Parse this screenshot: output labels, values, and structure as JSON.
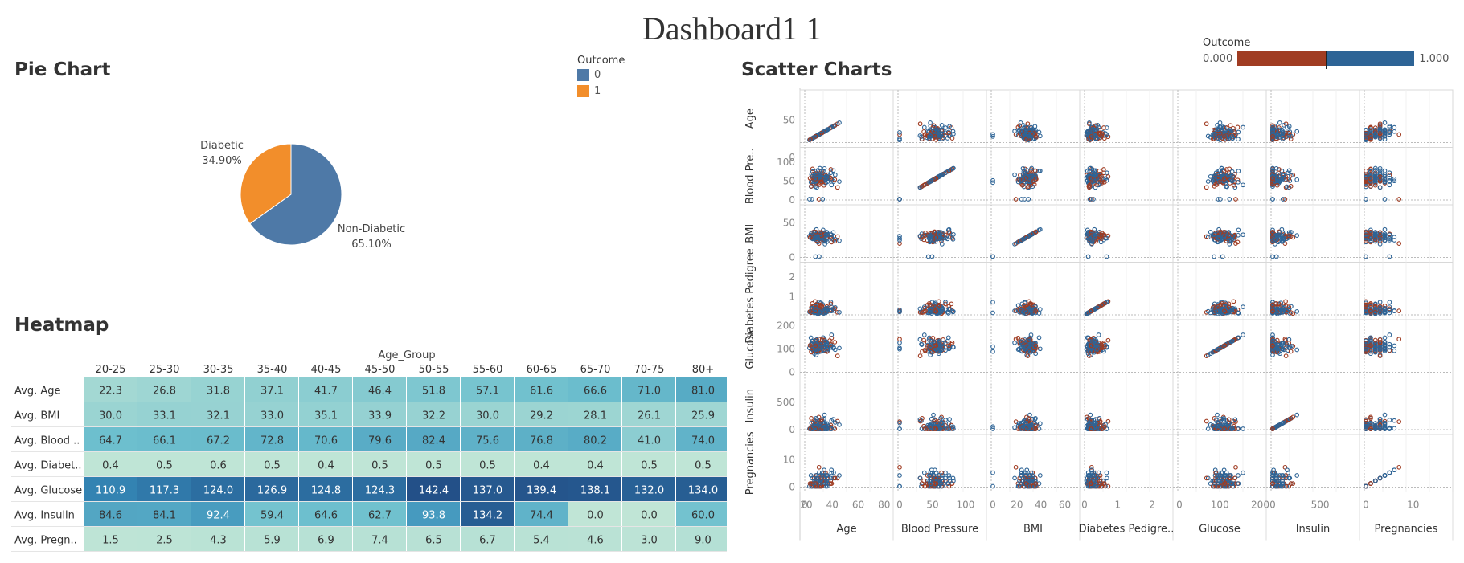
{
  "dashboard": {
    "title": "Dashboard1 1"
  },
  "pie": {
    "title": "Pie Chart",
    "legend": {
      "title": "Outcome",
      "items": [
        {
          "label": "0",
          "color": "#4e79a7"
        },
        {
          "label": "1",
          "color": "#f28e2b"
        }
      ]
    }
  },
  "heatmap_title": "Heatmap",
  "scatter": {
    "title": "Scatter Charts",
    "legend": {
      "title": "Outcome",
      "min_label": "0.000",
      "max_label": "1.000",
      "low_color": "#a03c22",
      "high_color": "#2e6496"
    }
  },
  "chart_data": [
    {
      "type": "pie",
      "slices": [
        {
          "label": "Non-Diabetic",
          "value": 65.1,
          "value_label": "65.10%",
          "color": "#4e79a7"
        },
        {
          "label": "Diabetic",
          "value": 34.9,
          "value_label": "34.90%",
          "color": "#f28e2b"
        }
      ]
    },
    {
      "type": "heatmap",
      "xlabel": "Age_Group",
      "columns": [
        "20-25",
        "25-30",
        "30-35",
        "35-40",
        "40-45",
        "45-50",
        "50-55",
        "55-60",
        "60-65",
        "65-70",
        "70-75",
        "80+"
      ],
      "rows": [
        "Avg. Age",
        "Avg. BMI",
        "Avg. Blood ..",
        "Avg. Diabet..",
        "Avg. Glucose",
        "Avg. Insulin",
        "Avg. Pregn.."
      ],
      "values": [
        [
          "22.3",
          "26.8",
          "31.8",
          "37.1",
          "41.7",
          "46.4",
          "51.8",
          "57.1",
          "61.6",
          "66.6",
          "71.0",
          "81.0"
        ],
        [
          "30.0",
          "33.1",
          "32.1",
          "33.0",
          "35.1",
          "33.9",
          "32.2",
          "30.0",
          "29.2",
          "28.1",
          "26.1",
          "25.9"
        ],
        [
          "64.7",
          "66.1",
          "67.2",
          "72.8",
          "70.6",
          "79.6",
          "82.4",
          "75.6",
          "76.8",
          "80.2",
          "41.0",
          "74.0"
        ],
        [
          "0.4",
          "0.5",
          "0.6",
          "0.5",
          "0.4",
          "0.5",
          "0.5",
          "0.5",
          "0.4",
          "0.4",
          "0.5",
          "0.5"
        ],
        [
          "110.9",
          "117.3",
          "124.0",
          "126.9",
          "124.8",
          "124.3",
          "142.4",
          "137.0",
          "139.4",
          "138.1",
          "132.0",
          "134.0"
        ],
        [
          "84.6",
          "84.1",
          "92.4",
          "59.4",
          "64.6",
          "62.7",
          "93.8",
          "134.2",
          "74.4",
          "0.0",
          "0.0",
          "60.0"
        ],
        [
          "1.5",
          "2.5",
          "4.3",
          "5.9",
          "6.9",
          "7.4",
          "6.5",
          "6.7",
          "5.4",
          "4.6",
          "3.0",
          "9.0"
        ]
      ]
    },
    {
      "type": "scatter",
      "variables": [
        "Age",
        "Blood Pressure",
        "BMI",
        "Diabetes Pedigree Function",
        "Glucose",
        "Insulin",
        "Pregnancies"
      ],
      "row_labels": [
        "Age",
        "Blood Pre..",
        "BMI",
        "Diabetes Pedigree ..",
        "Glucose",
        "Insulin",
        "Pregnancies"
      ],
      "col_labels": [
        "Age",
        "Blood Pressure",
        "BMI",
        "Diabetes Pedigre..",
        "Glucose",
        "Insulin",
        "Pregnancies"
      ],
      "ranges": [
        [
          20,
          82
        ],
        [
          0,
          122
        ],
        [
          0,
          67
        ],
        [
          0.08,
          2.42
        ],
        [
          0,
          199
        ],
        [
          0,
          846
        ],
        [
          0,
          17
        ]
      ],
      "axis_ticks": [
        [
          0,
          20,
          40,
          60,
          80
        ],
        [
          0,
          50,
          100
        ],
        [
          0,
          20,
          40,
          60
        ],
        [
          0,
          1,
          2
        ],
        [
          0,
          100,
          200
        ],
        [
          0,
          500
        ],
        [
          0,
          10
        ]
      ],
      "row_ticks": [
        [
          0,
          50
        ],
        [
          0,
          50,
          100
        ],
        [
          0,
          50
        ],
        [
          1,
          2
        ],
        [
          0,
          100,
          200
        ],
        [
          0,
          500
        ],
        [
          0,
          10
        ]
      ]
    }
  ]
}
